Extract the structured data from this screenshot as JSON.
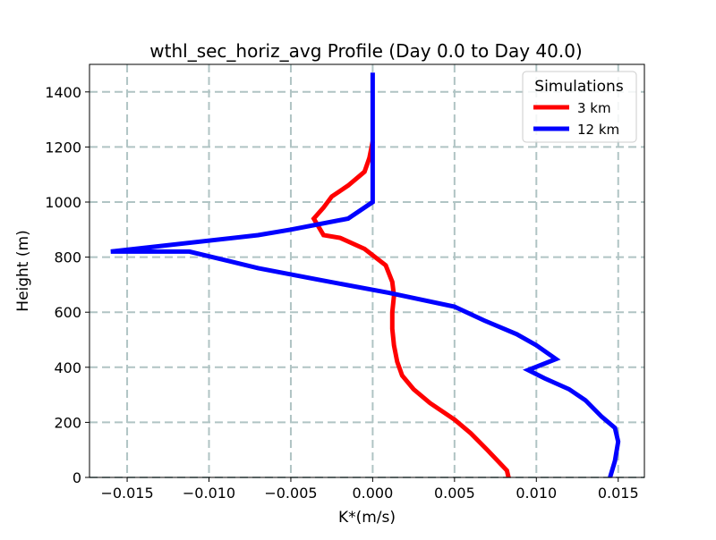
{
  "chart_data": {
    "type": "line",
    "title": "wthl_sec_horiz_avg Profile (Day 0.0 to Day 40.0)",
    "xlabel": "K*(m/s)",
    "ylabel": "Height (m)",
    "xlim": [
      -0.0173,
      0.0166
    ],
    "ylim": [
      0,
      1500
    ],
    "xticks": [
      -0.015,
      -0.01,
      -0.005,
      0.0,
      0.005,
      0.01,
      0.015
    ],
    "xtick_labels": [
      "−0.015",
      "−0.010",
      "−0.005",
      "0.000",
      "0.005",
      "0.010",
      "0.015"
    ],
    "yticks": [
      0,
      200,
      400,
      600,
      800,
      1000,
      1200,
      1400
    ],
    "ytick_labels": [
      "0",
      "200",
      "400",
      "600",
      "800",
      "1000",
      "1200",
      "1400"
    ],
    "grid": true,
    "legend": {
      "title": "Simulations",
      "placement": "top-right"
    },
    "series": [
      {
        "name": "3 km",
        "color": "#ff0000",
        "points": [
          [
            0.0083,
            0
          ],
          [
            0.0082,
            25
          ],
          [
            0.007,
            100
          ],
          [
            0.006,
            160
          ],
          [
            0.005,
            210
          ],
          [
            0.0035,
            270
          ],
          [
            0.0025,
            320
          ],
          [
            0.0018,
            370
          ],
          [
            0.0015,
            420
          ],
          [
            0.0013,
            480
          ],
          [
            0.0012,
            540
          ],
          [
            0.0012,
            600
          ],
          [
            0.0013,
            660
          ],
          [
            0.0012,
            710
          ],
          [
            0.0008,
            770
          ],
          [
            -0.0005,
            830
          ],
          [
            -0.002,
            870
          ],
          [
            -0.003,
            880
          ],
          [
            -0.0036,
            940
          ],
          [
            -0.003,
            980
          ],
          [
            -0.0025,
            1020
          ],
          [
            -0.0015,
            1060
          ],
          [
            -0.0005,
            1110
          ],
          [
            -0.0002,
            1160
          ],
          [
            0.0,
            1220
          ]
        ]
      },
      {
        "name": "12 km",
        "color": "#0000ff",
        "points": [
          [
            0.0145,
            0
          ],
          [
            0.0148,
            60
          ],
          [
            0.015,
            130
          ],
          [
            0.0148,
            180
          ],
          [
            0.014,
            220
          ],
          [
            0.013,
            280
          ],
          [
            0.012,
            320
          ],
          [
            0.0105,
            360
          ],
          [
            0.0095,
            390
          ],
          [
            0.0112,
            430
          ],
          [
            0.01,
            480
          ],
          [
            0.0088,
            520
          ],
          [
            0.0068,
            570
          ],
          [
            0.005,
            620
          ],
          [
            0.001,
            670
          ],
          [
            -0.0035,
            720
          ],
          [
            -0.007,
            760
          ],
          [
            -0.0112,
            820
          ],
          [
            -0.016,
            820
          ],
          [
            -0.007,
            880
          ],
          [
            -0.005,
            900
          ],
          [
            -0.0015,
            940
          ],
          [
            0.0,
            1000
          ],
          [
            0.0,
            1100
          ],
          [
            0.0,
            1200
          ],
          [
            0.0,
            1300
          ],
          [
            0.0,
            1470
          ]
        ]
      }
    ]
  }
}
